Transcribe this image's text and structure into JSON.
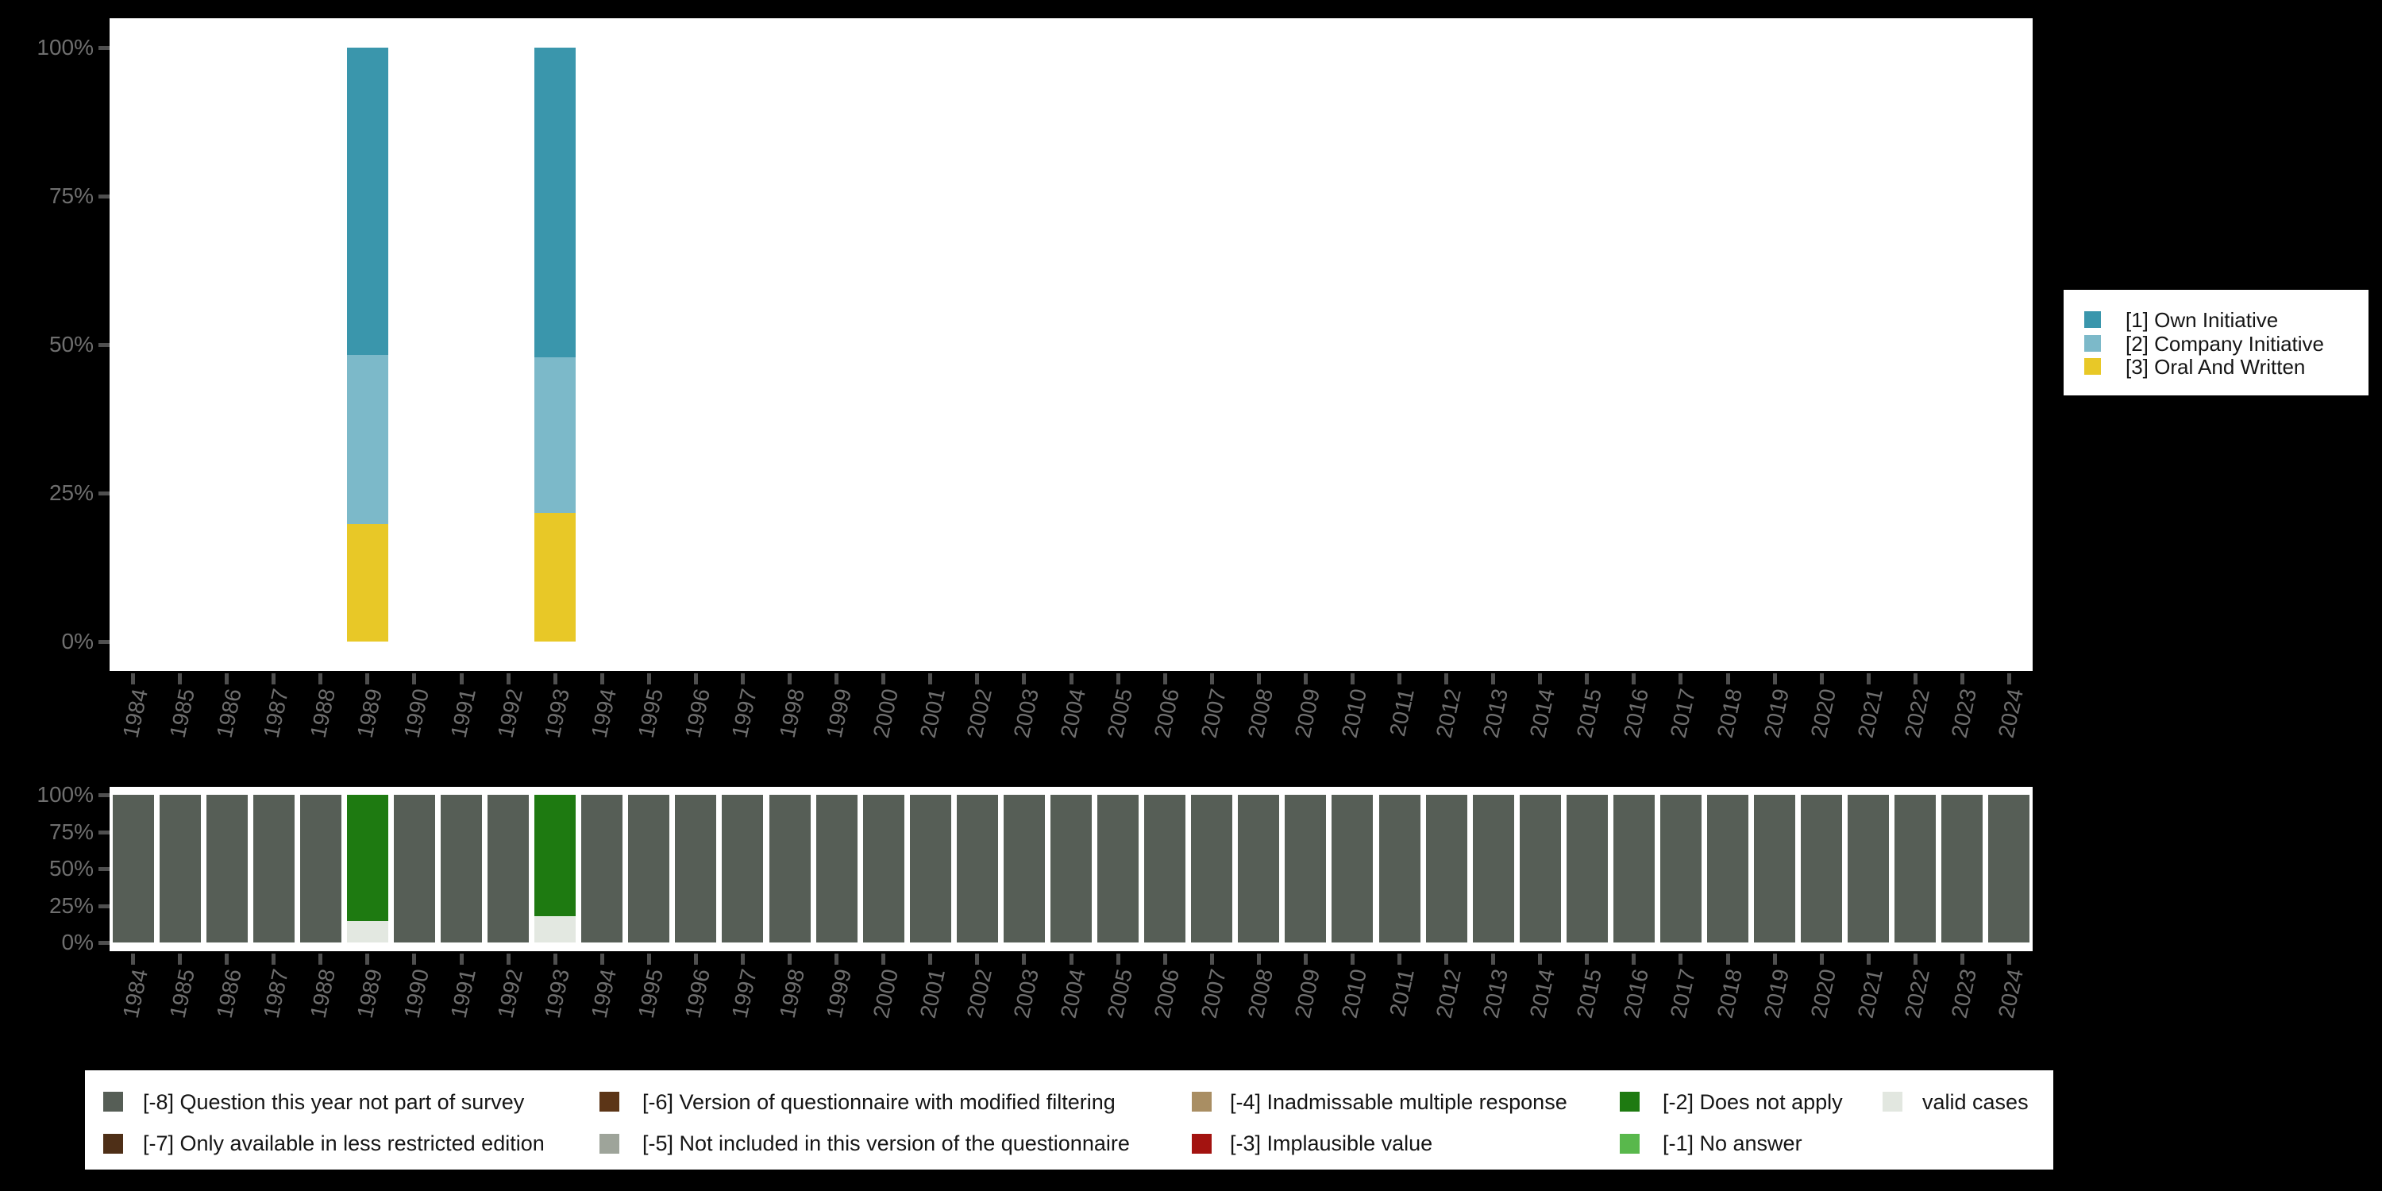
{
  "chart_data": [
    {
      "type": "bar",
      "stacked": true,
      "name": "valid-values-chart",
      "title": "",
      "xlabel": "",
      "ylabel": "",
      "ylim": [
        0,
        100
      ],
      "grid": false,
      "y_tick_labels": [
        "100%",
        "75%",
        "50%",
        "25%",
        "0%"
      ],
      "categories": [
        "1984",
        "1985",
        "1986",
        "1987",
        "1988",
        "1989",
        "1990",
        "1991",
        "1992",
        "1993",
        "1994",
        "1995",
        "1996",
        "1997",
        "1998",
        "1999",
        "2000",
        "2001",
        "2002",
        "2003",
        "2004",
        "2005",
        "2006",
        "2007",
        "2008",
        "2009",
        "2010",
        "2011",
        "2012",
        "2013",
        "2014",
        "2015",
        "2016",
        "2017",
        "2018",
        "2019",
        "2020",
        "2021",
        "2022",
        "2023",
        "2024"
      ],
      "series": [
        {
          "name": "[3] Oral And Written",
          "color": "#E8C827",
          "values": {
            "1989": 19.8,
            "1993": 21.6
          }
        },
        {
          "name": "[2] Company Initiative",
          "color": "#7CB9C9",
          "values": {
            "1989": 28.5,
            "1993": 26.3
          }
        },
        {
          "name": "[1] Own Initiative",
          "color": "#3A96AC",
          "values": {
            "1989": 51.7,
            "1993": 52.1
          }
        }
      ],
      "legend_position": "right"
    },
    {
      "type": "bar",
      "stacked": true,
      "name": "missing-values-chart",
      "title": "",
      "xlabel": "",
      "ylabel": "",
      "ylim": [
        0,
        100
      ],
      "grid": false,
      "y_tick_labels": [
        "100%",
        "75%",
        "50%",
        "25%",
        "0%"
      ],
      "categories": [
        "1984",
        "1985",
        "1986",
        "1987",
        "1988",
        "1989",
        "1990",
        "1991",
        "1992",
        "1993",
        "1994",
        "1995",
        "1996",
        "1997",
        "1998",
        "1999",
        "2000",
        "2001",
        "2002",
        "2003",
        "2004",
        "2005",
        "2006",
        "2007",
        "2008",
        "2009",
        "2010",
        "2011",
        "2012",
        "2013",
        "2014",
        "2015",
        "2016",
        "2017",
        "2018",
        "2019",
        "2020",
        "2021",
        "2022",
        "2023",
        "2024"
      ],
      "series": [
        {
          "name": "valid cases",
          "color": "#E3E8E1",
          "values": {
            "1989": 14.8,
            "1993": 17.5
          }
        },
        {
          "name": "[-2] Does not apply",
          "color": "#1E7A11",
          "values": {
            "1989": 85.2,
            "1993": 82.5
          }
        },
        {
          "name": "[-8] Question this year not part of survey",
          "color": "#565E56",
          "values": {
            "default": 100,
            "1989": 0,
            "1993": 0
          }
        }
      ],
      "legend_position": "bottom"
    }
  ],
  "legends": {
    "top_right": {
      "items": [
        {
          "label": "[1] Own Initiative",
          "color": "#3A96AC"
        },
        {
          "label": "[2] Company Initiative",
          "color": "#7CB9C9"
        },
        {
          "label": "[3] Oral And Written",
          "color": "#E8C827"
        }
      ]
    },
    "bottom": {
      "items": [
        {
          "label": "[-8] Question this year not part of survey",
          "color": "#565E56",
          "col": 0,
          "row": 0
        },
        {
          "label": "[-7] Only available in less restricted edition",
          "color": "#4E2F17",
          "col": 0,
          "row": 1
        },
        {
          "label": "[-6] Version of questionnaire with modified filtering",
          "color": "#5C3517",
          "col": 1,
          "row": 0
        },
        {
          "label": "[-5] Not included in this version of the questionnaire",
          "color": "#9EA49A",
          "col": 1,
          "row": 1
        },
        {
          "label": "[-4] Inadmissable multiple response",
          "color": "#A98E63",
          "col": 2,
          "row": 0
        },
        {
          "label": "[-3] Implausible value",
          "color": "#A31310",
          "col": 2,
          "row": 1
        },
        {
          "label": "[-2] Does not apply",
          "color": "#1E7A11",
          "col": 3,
          "row": 0
        },
        {
          "label": "[-1] No answer",
          "color": "#59B84C",
          "col": 3,
          "row": 1
        },
        {
          "label": "valid cases",
          "color": "#E2E7E0",
          "col": 4,
          "row": 0
        }
      ]
    }
  }
}
